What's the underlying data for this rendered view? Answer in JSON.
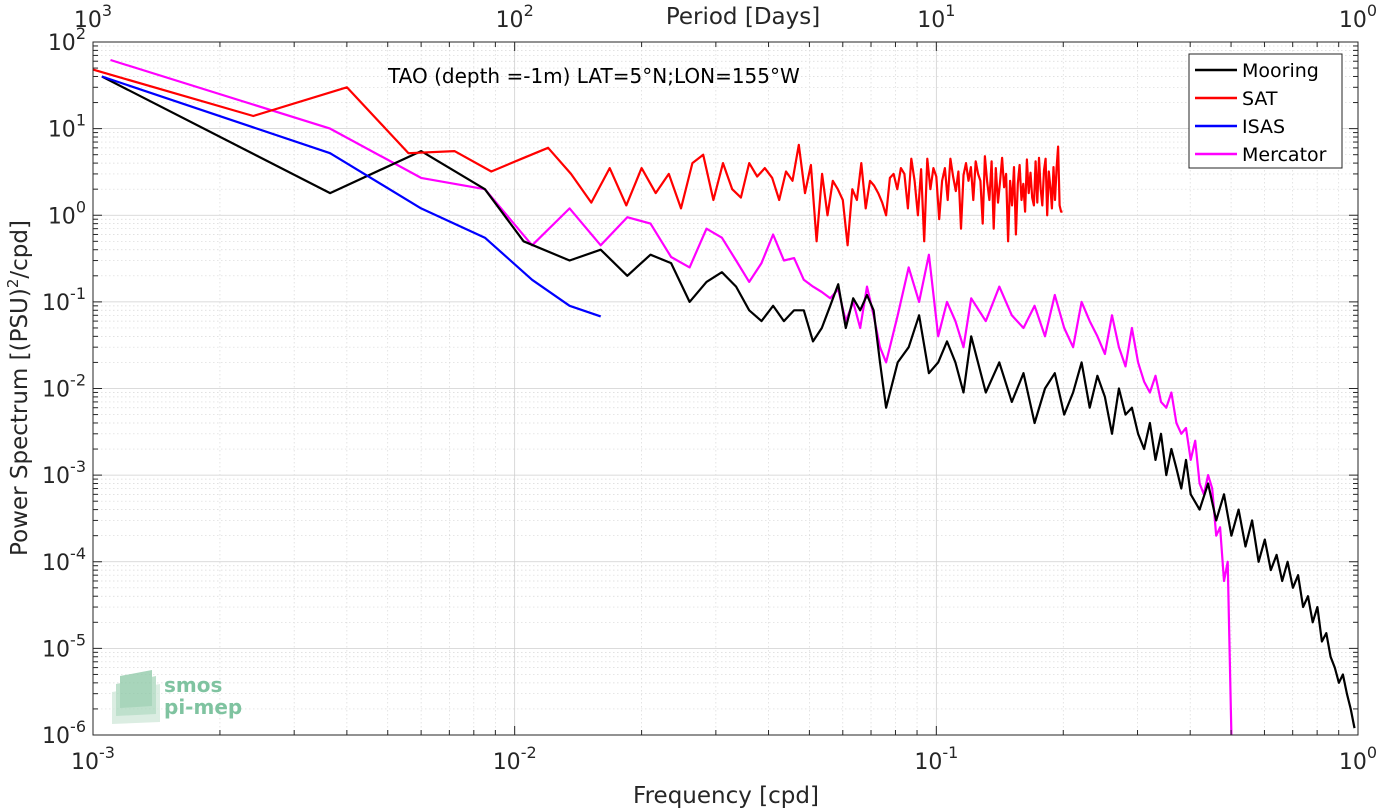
{
  "chart_data": {
    "type": "line",
    "annotation": "TAO (depth =-1m) LAT=5°N;LON=155°W",
    "xlabel": "Frequency [cpd]",
    "ylabel": "Power Spectrum [(PSU)",
    "ylabel_sup": "2",
    "ylabel_tail": "/cpd]",
    "top_xlabel": "Period [Days]",
    "xscale": "log",
    "yscale": "log",
    "xlim": [
      0.001,
      1
    ],
    "ylim": [
      1e-06,
      100
    ],
    "grid": true,
    "legend_position": "top-right",
    "x_ticks": [
      {
        "value": 0.001,
        "base": "10",
        "exp": "-3"
      },
      {
        "value": 0.01,
        "base": "10",
        "exp": "-2"
      },
      {
        "value": 0.1,
        "base": "10",
        "exp": "-1"
      },
      {
        "value": 1,
        "base": "10",
        "exp": "0"
      }
    ],
    "y_ticks": [
      {
        "value": 1e-06,
        "base": "10",
        "exp": "-6"
      },
      {
        "value": 1e-05,
        "base": "10",
        "exp": "-5"
      },
      {
        "value": 0.0001,
        "base": "10",
        "exp": "-4"
      },
      {
        "value": 0.001,
        "base": "10",
        "exp": "-3"
      },
      {
        "value": 0.01,
        "base": "10",
        "exp": "-2"
      },
      {
        "value": 0.1,
        "base": "10",
        "exp": "-1"
      },
      {
        "value": 1,
        "base": "10",
        "exp": "0"
      },
      {
        "value": 10,
        "base": "10",
        "exp": "1"
      },
      {
        "value": 100,
        "base": "10",
        "exp": "2"
      }
    ],
    "top_ticks": [
      {
        "value": 0.001,
        "base": "10",
        "exp": "3"
      },
      {
        "value": 0.01,
        "base": "10",
        "exp": "2"
      },
      {
        "value": 0.1,
        "base": "10",
        "exp": "1"
      },
      {
        "value": 1,
        "base": "10",
        "exp": "0"
      }
    ],
    "series": [
      {
        "name": "Mooring",
        "color": "#000000",
        "x": [
          0.00105,
          0.00365,
          0.006,
          0.0085,
          0.0105,
          0.0135,
          0.016,
          0.0185,
          0.021,
          0.0235,
          0.026,
          0.0285,
          0.031,
          0.0335,
          0.036,
          0.0385,
          0.041,
          0.0435,
          0.046,
          0.0485,
          0.051,
          0.0535,
          0.056,
          0.0585,
          0.061,
          0.0635,
          0.066,
          0.0685,
          0.071,
          0.0735,
          0.076,
          0.081,
          0.086,
          0.091,
          0.096,
          0.101,
          0.106,
          0.111,
          0.116,
          0.121,
          0.131,
          0.141,
          0.151,
          0.161,
          0.171,
          0.181,
          0.191,
          0.201,
          0.211,
          0.221,
          0.231,
          0.241,
          0.251,
          0.261,
          0.271,
          0.281,
          0.291,
          0.301,
          0.311,
          0.321,
          0.331,
          0.341,
          0.351,
          0.361,
          0.371,
          0.381,
          0.391,
          0.401,
          0.421,
          0.441,
          0.461,
          0.481,
          0.501,
          0.521,
          0.541,
          0.561,
          0.581,
          0.601,
          0.621,
          0.641,
          0.661,
          0.681,
          0.701,
          0.721,
          0.741,
          0.761,
          0.781,
          0.801,
          0.821,
          0.841,
          0.861,
          0.881,
          0.901,
          0.921,
          0.941,
          0.961,
          0.981
        ],
        "values": [
          40,
          1.8,
          5.5,
          2,
          0.5,
          0.3,
          0.4,
          0.2,
          0.35,
          0.28,
          0.1,
          0.17,
          0.22,
          0.15,
          0.08,
          0.06,
          0.09,
          0.06,
          0.08,
          0.08,
          0.035,
          0.05,
          0.09,
          0.16,
          0.05,
          0.11,
          0.08,
          0.12,
          0.08,
          0.02,
          0.006,
          0.02,
          0.03,
          0.07,
          0.015,
          0.02,
          0.035,
          0.02,
          0.009,
          0.04,
          0.009,
          0.02,
          0.007,
          0.015,
          0.004,
          0.01,
          0.015,
          0.005,
          0.009,
          0.02,
          0.006,
          0.014,
          0.008,
          0.003,
          0.01,
          0.005,
          0.006,
          0.003,
          0.002,
          0.004,
          0.0015,
          0.003,
          0.001,
          0.002,
          0.0012,
          0.0007,
          0.0015,
          0.0006,
          0.0004,
          0.0008,
          0.0003,
          0.0006,
          0.0002,
          0.0004,
          0.00015,
          0.0003,
          0.0001,
          0.00018,
          8e-05,
          0.00012,
          6e-05,
          0.0001,
          5e-05,
          7e-05,
          3e-05,
          4e-05,
          2e-05,
          3e-05,
          1.2e-05,
          1.5e-05,
          8e-06,
          6e-06,
          4e-06,
          5e-06,
          3e-06,
          2e-06,
          1.2e-06
        ]
      },
      {
        "name": "SAT",
        "color": "#ff0000",
        "x": [
          0.001,
          0.0024,
          0.004,
          0.0056,
          0.0072,
          0.0088,
          0.0104,
          0.012,
          0.0136,
          0.0152,
          0.0168,
          0.0184,
          0.02,
          0.0216,
          0.0232,
          0.0248,
          0.0264,
          0.028,
          0.0296,
          0.0312,
          0.0328,
          0.0344,
          0.036,
          0.0376,
          0.0392,
          0.0408,
          0.0424,
          0.044,
          0.0456,
          0.0472,
          0.0488,
          0.0504,
          0.052,
          0.0536,
          0.0552,
          0.0568,
          0.0584,
          0.06,
          0.0616,
          0.0632,
          0.0648,
          0.0664,
          0.068,
          0.0696,
          0.0712,
          0.0728,
          0.0744,
          0.076,
          0.0776,
          0.0792,
          0.0808,
          0.0824,
          0.084,
          0.0856,
          0.0872,
          0.0888,
          0.0904,
          0.092,
          0.0936,
          0.0952,
          0.0968,
          0.0984,
          0.1,
          0.1016,
          0.1032,
          0.1048,
          0.1064,
          0.108,
          0.1096,
          0.1112,
          0.1128,
          0.1144,
          0.116,
          0.1176,
          0.1192,
          0.1208,
          0.1224,
          0.124,
          0.1256,
          0.1272,
          0.1288,
          0.1304,
          0.132,
          0.1336,
          0.1352,
          0.1368,
          0.1384,
          0.14,
          0.1416,
          0.1432,
          0.1448,
          0.1464,
          0.148,
          0.1496,
          0.1512,
          0.1528,
          0.1544,
          0.156,
          0.1576,
          0.1592,
          0.1608,
          0.1624,
          0.164,
          0.1656,
          0.1672,
          0.1688,
          0.1704,
          0.172,
          0.1736,
          0.1752,
          0.1768,
          0.1784,
          0.18,
          0.1816,
          0.1832,
          0.1848,
          0.1864,
          0.188,
          0.1896,
          0.1912,
          0.1928,
          0.1944,
          0.196,
          0.1976,
          0.1992
        ],
        "values": [
          48,
          14,
          30,
          5.2,
          5.5,
          3.2,
          4.5,
          6,
          3,
          1.4,
          3.5,
          1.3,
          3.5,
          1.8,
          3,
          1.2,
          4,
          5,
          1.5,
          4,
          2,
          1.6,
          4,
          2.8,
          3.5,
          2.7,
          1.5,
          3.2,
          2.5,
          6.5,
          1.8,
          3.8,
          0.5,
          3,
          1,
          2.5,
          2,
          1.5,
          0.45,
          2,
          1.5,
          4,
          1.2,
          2.5,
          2.2,
          1.8,
          1.4,
          1,
          2.7,
          3,
          2,
          3.5,
          3,
          1.2,
          4.5,
          2.5,
          1,
          3.4,
          0.5,
          4.5,
          2,
          3.5,
          2.8,
          0.9,
          2.5,
          3.5,
          1.5,
          4.5,
          2.8,
          1.9,
          3.2,
          0.7,
          2.9,
          4,
          2.5,
          3.6,
          1.5,
          4.2,
          3,
          2.5,
          0.8,
          4.8,
          2.4,
          1.5,
          4.2,
          0.7,
          3.5,
          1.4,
          2.4,
          4.6,
          2.1,
          3,
          0.5,
          2.5,
          1.3,
          3.6,
          0.6,
          2.3,
          3.8,
          1.5,
          2.3,
          1.1,
          4.4,
          1.8,
          3.1,
          1.6,
          1.3,
          4.2,
          1.4,
          4.6,
          2,
          1.3,
          3.3,
          4.5,
          1,
          3.2,
          2.1,
          1.2,
          3.6,
          1.5,
          3.5,
          6.2,
          1.3,
          1.1,
          1.1
        ]
      },
      {
        "name": "ISAS",
        "color": "#0000ff",
        "x": [
          0.00105,
          0.00365,
          0.006,
          0.0085,
          0.011,
          0.0135,
          0.016
        ],
        "values": [
          40,
          5.2,
          1.2,
          0.55,
          0.18,
          0.09,
          0.068
        ]
      },
      {
        "name": "Mercator",
        "color": "#ff00ff",
        "x": [
          0.0011,
          0.00365,
          0.006,
          0.0085,
          0.011,
          0.0135,
          0.016,
          0.0185,
          0.021,
          0.0235,
          0.026,
          0.0285,
          0.031,
          0.0335,
          0.036,
          0.0385,
          0.041,
          0.0435,
          0.046,
          0.0485,
          0.051,
          0.0535,
          0.056,
          0.0585,
          0.061,
          0.0635,
          0.066,
          0.0685,
          0.071,
          0.0735,
          0.076,
          0.081,
          0.086,
          0.091,
          0.096,
          0.101,
          0.106,
          0.111,
          0.116,
          0.121,
          0.131,
          0.141,
          0.151,
          0.161,
          0.171,
          0.181,
          0.191,
          0.201,
          0.211,
          0.221,
          0.231,
          0.241,
          0.251,
          0.261,
          0.271,
          0.281,
          0.291,
          0.301,
          0.311,
          0.321,
          0.331,
          0.341,
          0.351,
          0.361,
          0.371,
          0.381,
          0.391,
          0.401,
          0.411,
          0.421,
          0.431,
          0.441,
          0.451,
          0.461,
          0.471,
          0.481,
          0.491,
          0.501
        ],
        "values": [
          62,
          10,
          2.7,
          2,
          0.45,
          1.2,
          0.45,
          0.95,
          0.8,
          0.33,
          0.25,
          0.7,
          0.55,
          0.3,
          0.17,
          0.28,
          0.6,
          0.3,
          0.32,
          0.18,
          0.15,
          0.13,
          0.11,
          0.14,
          0.06,
          0.1,
          0.05,
          0.15,
          0.07,
          0.03,
          0.02,
          0.07,
          0.25,
          0.1,
          0.35,
          0.04,
          0.1,
          0.06,
          0.03,
          0.11,
          0.06,
          0.15,
          0.07,
          0.05,
          0.09,
          0.04,
          0.12,
          0.05,
          0.03,
          0.1,
          0.06,
          0.04,
          0.025,
          0.07,
          0.03,
          0.018,
          0.05,
          0.02,
          0.012,
          0.009,
          0.014,
          0.007,
          0.006,
          0.009,
          0.004,
          0.003,
          0.0035,
          0.0015,
          0.0025,
          0.0008,
          0.0006,
          0.001,
          0.0007,
          0.0002,
          0.00025,
          6e-05,
          0.0001,
          1e-06
        ]
      }
    ]
  },
  "logo": {
    "line1": "smos",
    "line2": "pi-mep",
    "color": "#7fc3a0"
  }
}
